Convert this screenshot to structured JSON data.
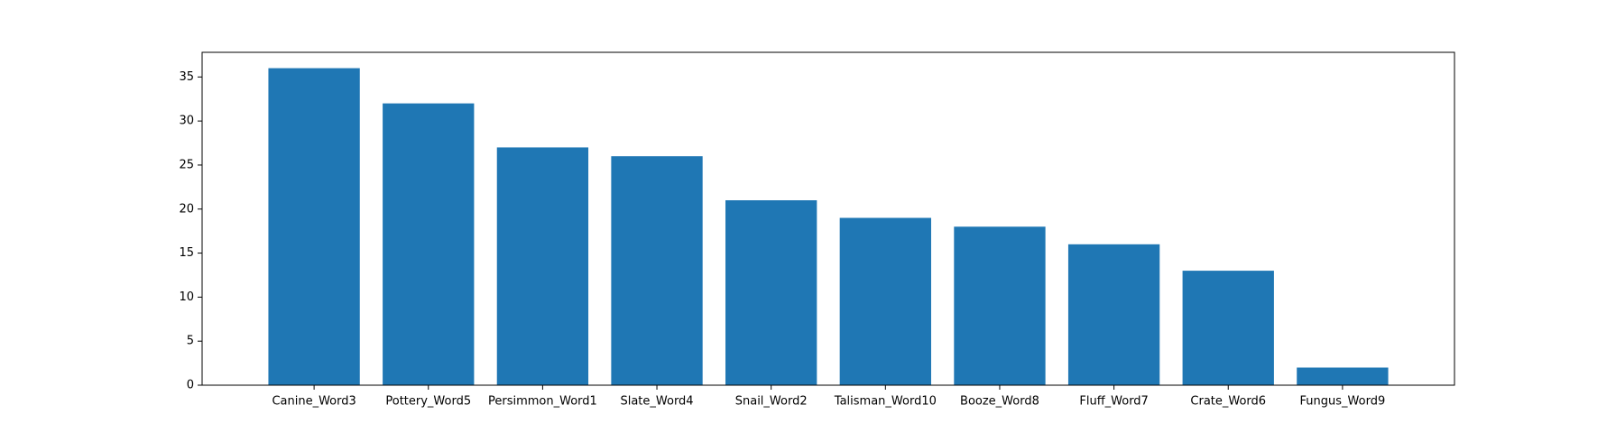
{
  "chart_data": {
    "type": "bar",
    "categories": [
      "Canine_Word3",
      "Pottery_Word5",
      "Persimmon_Word1",
      "Slate_Word4",
      "Snail_Word2",
      "Talisman_Word10",
      "Booze_Word8",
      "Fluff_Word7",
      "Crate_Word6",
      "Fungus_Word9"
    ],
    "values": [
      36,
      32,
      27,
      26,
      21,
      19,
      18,
      16,
      13,
      2
    ],
    "title": "",
    "xlabel": "",
    "ylabel": "",
    "ylim": [
      0,
      37.8
    ],
    "yticks": [
      0,
      5,
      10,
      15,
      20,
      25,
      30,
      35
    ],
    "grid": false,
    "bar_color": "#1f77b4",
    "axis_color": "#000000"
  }
}
